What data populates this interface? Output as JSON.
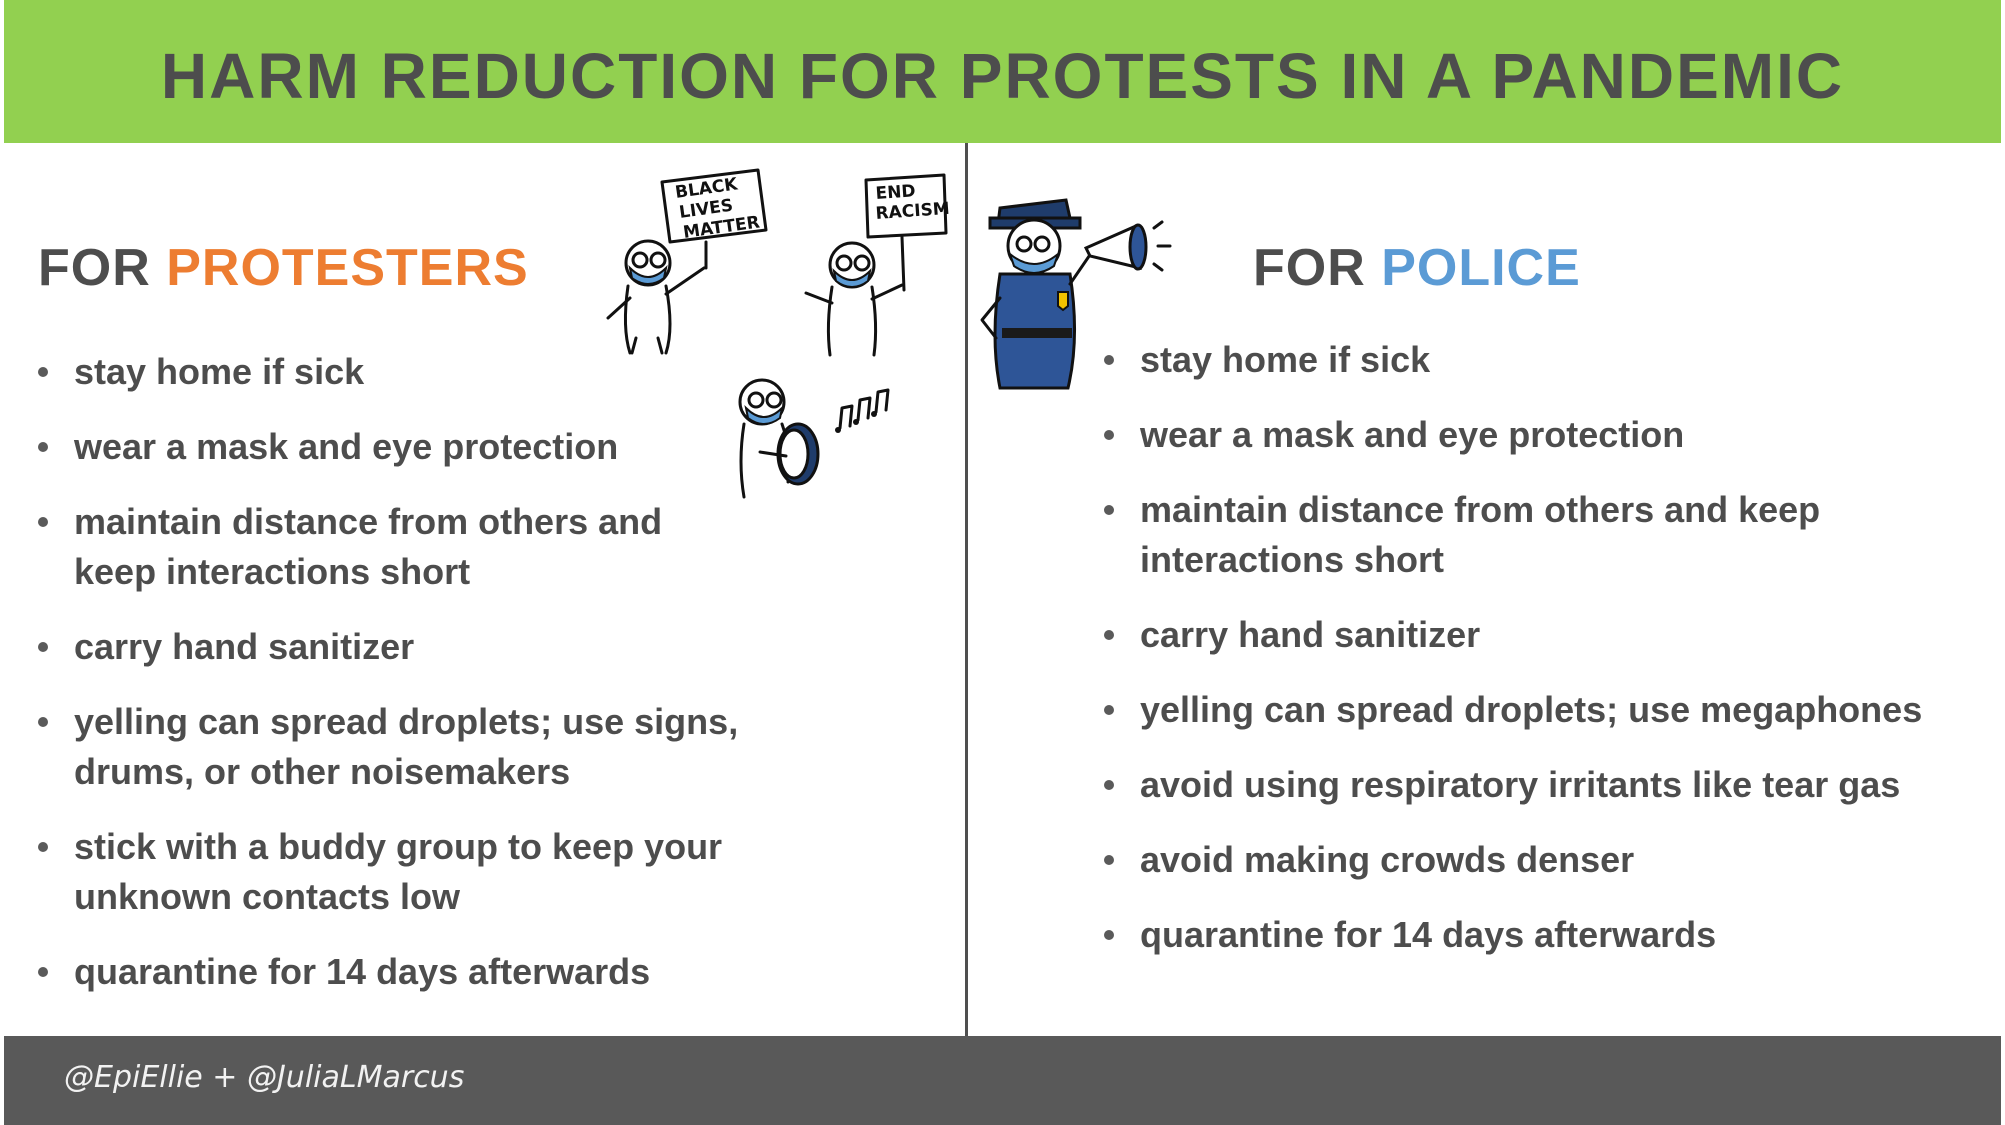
{
  "header": {
    "title": "HARM REDUCTION FOR PROTESTS IN A PANDEMIC",
    "color": "#92d050"
  },
  "protesters": {
    "heading_prefix": "FOR ",
    "heading_accent": "PROTESTERS",
    "accent_color": "#ed7d31",
    "items": [
      "stay home if sick",
      "wear a mask and eye protection",
      "maintain distance from others and keep interactions short",
      "carry hand sanitizer",
      "yelling can spread droplets; use signs, drums, or other noisemakers",
      "stick with a buddy group to keep your unknown contacts low",
      "quarantine for 14 days afterwards"
    ]
  },
  "police": {
    "heading_prefix": "FOR ",
    "heading_accent": "POLICE",
    "accent_color": "#5b9bd5",
    "items": [
      "stay home if sick",
      "wear a mask and eye protection",
      "maintain distance from others and keep interactions short",
      "carry hand sanitizer",
      "yelling can spread droplets; use megaphones",
      "avoid using respiratory irritants like tear gas",
      "avoid making crowds denser",
      "quarantine for 14 days afterwards"
    ]
  },
  "illustrations": {
    "sign1": [
      "BLACK",
      "LIVES",
      "MATTER"
    ],
    "sign2": [
      "END",
      "RACISM"
    ],
    "icons": [
      "protester-with-sign-icon",
      "drummer-icon",
      "music-notes-icon",
      "police-officer-icon",
      "megaphone-icon"
    ]
  },
  "footer": {
    "credits": "@EpiEllie + @JuliaLMarcus",
    "color": "#595959"
  }
}
